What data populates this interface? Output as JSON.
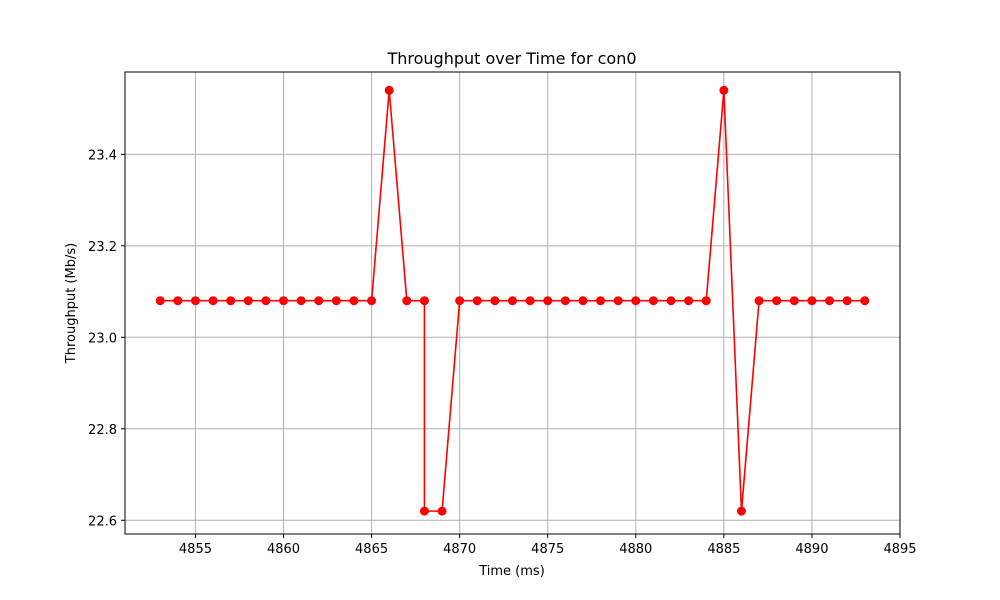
{
  "chart_data": {
    "type": "line",
    "title": "Throughput over Time for con0",
    "xlabel": "Time (ms)",
    "ylabel": "Throughput (Mb/s)",
    "xlim": [
      4851,
      4895
    ],
    "ylim": [
      22.57,
      23.58
    ],
    "xticks": [
      4855,
      4860,
      4865,
      4870,
      4875,
      4880,
      4885,
      4890,
      4895
    ],
    "yticks": [
      22.6,
      22.8,
      23.0,
      23.2,
      23.4
    ],
    "ytick_labels": [
      "22.6",
      "22.8",
      "23.0",
      "23.2",
      "23.4"
    ],
    "grid": true,
    "legend": false,
    "series": [
      {
        "color": "#ff0000",
        "marker": "circle",
        "x": [
          4853,
          4854,
          4855,
          4856,
          4857,
          4858,
          4859,
          4860,
          4861,
          4862,
          4863,
          4864,
          4865,
          4866,
          4867,
          4868,
          4868,
          4869,
          4870,
          4871,
          4872,
          4873,
          4874,
          4875,
          4876,
          4877,
          4878,
          4879,
          4880,
          4881,
          4882,
          4883,
          4884,
          4885,
          4886,
          4887,
          4888,
          4889,
          4890,
          4891,
          4892,
          4893
        ],
        "y": [
          23.08,
          23.08,
          23.08,
          23.08,
          23.08,
          23.08,
          23.08,
          23.08,
          23.08,
          23.08,
          23.08,
          23.08,
          23.08,
          23.54,
          23.08,
          23.08,
          22.62,
          22.62,
          23.08,
          23.08,
          23.08,
          23.08,
          23.08,
          23.08,
          23.08,
          23.08,
          23.08,
          23.08,
          23.08,
          23.08,
          23.08,
          23.08,
          23.08,
          23.54,
          22.62,
          23.08,
          23.08,
          23.08,
          23.08,
          23.08,
          23.08,
          23.08
        ]
      }
    ]
  }
}
